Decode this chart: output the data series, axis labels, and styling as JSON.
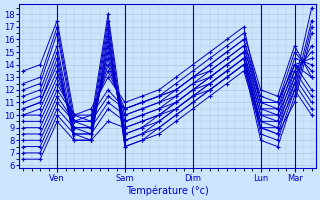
{
  "xlabel": "Température (°c)",
  "bg_color": "#cce5ff",
  "line_color": "#0000cc",
  "grid_color": "#b0c8d8",
  "ylim": [
    5.8,
    18.8
  ],
  "yticks": [
    6,
    7,
    8,
    9,
    10,
    11,
    12,
    13,
    14,
    15,
    16,
    17,
    18
  ],
  "day_labels": [
    "Ven",
    "Sam",
    "Dim",
    "Lun",
    "Mar"
  ],
  "day_tick_positions": [
    8,
    24,
    40,
    56,
    64
  ],
  "xlim": [
    -1,
    69
  ],
  "vline_positions": [
    8,
    24,
    40,
    56,
    64
  ],
  "lines": [
    [
      0,
      13.5,
      4,
      14,
      8,
      17.5,
      12,
      10,
      16,
      9.5,
      20,
      18,
      24,
      8.5,
      28,
      9,
      32,
      10,
      36,
      11,
      40,
      12,
      44,
      13,
      48,
      14,
      52,
      15,
      56,
      9,
      60,
      8.5,
      64,
      12.5,
      68,
      18.5
    ],
    [
      0,
      12.5,
      4,
      13,
      8,
      17,
      12,
      9.5,
      16,
      9,
      20,
      17.5,
      24,
      8,
      28,
      8.5,
      32,
      9.5,
      36,
      10.5,
      40,
      11.5,
      44,
      12.5,
      48,
      13.5,
      52,
      14.5,
      56,
      8.5,
      60,
      8,
      64,
      12,
      68,
      17.5
    ],
    [
      0,
      12,
      4,
      12.5,
      8,
      16.5,
      12,
      9,
      16,
      8.5,
      20,
      17,
      24,
      7.5,
      28,
      8,
      32,
      9,
      36,
      10,
      40,
      11,
      44,
      12,
      48,
      13,
      52,
      14,
      56,
      8,
      60,
      7.5,
      64,
      11.5,
      68,
      17
    ],
    [
      0,
      11.5,
      4,
      12,
      8,
      15.5,
      12,
      8.5,
      16,
      8,
      20,
      16.5,
      24,
      7.5,
      28,
      8,
      32,
      8.5,
      36,
      9.5,
      40,
      10.5,
      44,
      11.5,
      48,
      12.5,
      52,
      13.5,
      56,
      9,
      60,
      8.5,
      64,
      11,
      68,
      16.5
    ],
    [
      0,
      11,
      4,
      11.5,
      8,
      15,
      12,
      8,
      16,
      8,
      20,
      16,
      24,
      8,
      28,
      8.5,
      32,
      9,
      36,
      10,
      40,
      11,
      44,
      12,
      48,
      13,
      52,
      14,
      56,
      9.5,
      60,
      9,
      64,
      13,
      68,
      15.5
    ],
    [
      0,
      10.5,
      4,
      11,
      8,
      14.5,
      12,
      8,
      16,
      8,
      20,
      15.5,
      24,
      8.5,
      28,
      9,
      32,
      9.5,
      36,
      10.5,
      40,
      11.5,
      44,
      12.5,
      48,
      13.5,
      52,
      14.5,
      56,
      10,
      60,
      9.5,
      64,
      13.5,
      68,
      15
    ],
    [
      0,
      10.5,
      4,
      11,
      8,
      14,
      12,
      8.5,
      16,
      8.5,
      20,
      15,
      24,
      9,
      28,
      9.5,
      32,
      10,
      36,
      11,
      40,
      12,
      44,
      13,
      48,
      14,
      52,
      15,
      56,
      10.5,
      60,
      10,
      64,
      14,
      68,
      14.5
    ],
    [
      0,
      10,
      4,
      10.5,
      8,
      13.5,
      12,
      9,
      16,
      9,
      20,
      14.5,
      24,
      9.5,
      28,
      10,
      32,
      10.5,
      36,
      11.5,
      40,
      12.5,
      44,
      13.5,
      48,
      14.5,
      52,
      15.5,
      56,
      11,
      60,
      10.5,
      64,
      14.5,
      68,
      14
    ],
    [
      0,
      10,
      4,
      10,
      8,
      13,
      12,
      9.5,
      16,
      9.5,
      20,
      14,
      24,
      10,
      28,
      10.5,
      32,
      11,
      36,
      12,
      40,
      13,
      44,
      14,
      48,
      15,
      52,
      16,
      56,
      11.5,
      60,
      11,
      64,
      15,
      68,
      13.5
    ],
    [
      0,
      9.5,
      4,
      9.5,
      8,
      12.5,
      12,
      10,
      16,
      10,
      20,
      13.5,
      24,
      10.5,
      28,
      11,
      32,
      11.5,
      36,
      12.5,
      40,
      13.5,
      44,
      14.5,
      48,
      15.5,
      52,
      16.5,
      56,
      12,
      60,
      11.5,
      64,
      15.5,
      68,
      13
    ],
    [
      0,
      9,
      4,
      9,
      8,
      12,
      12,
      10,
      16,
      10.5,
      20,
      13,
      24,
      11,
      28,
      11.5,
      32,
      12,
      36,
      13,
      40,
      14,
      44,
      15,
      48,
      16,
      52,
      17,
      56,
      11,
      60,
      11,
      64,
      14,
      68,
      13
    ],
    [
      0,
      8.5,
      4,
      8.5,
      8,
      11.5,
      12,
      9.5,
      16,
      10,
      20,
      12,
      24,
      10.5,
      28,
      11,
      32,
      11.5,
      36,
      12,
      40,
      13,
      44,
      14,
      48,
      15,
      52,
      16,
      56,
      11,
      60,
      11,
      64,
      14,
      68,
      12
    ],
    [
      0,
      8,
      4,
      8,
      8,
      11,
      12,
      9.5,
      16,
      9.5,
      20,
      11.5,
      24,
      10.5,
      28,
      11,
      32,
      11.5,
      36,
      12,
      40,
      13,
      44,
      13.5,
      48,
      14.5,
      52,
      15.5,
      56,
      10.5,
      60,
      10.5,
      64,
      13.5,
      68,
      11.5
    ],
    [
      0,
      7.5,
      4,
      7.5,
      8,
      10.5,
      12,
      9,
      16,
      9,
      20,
      11,
      24,
      10,
      28,
      10.5,
      32,
      11,
      36,
      11.5,
      40,
      12.5,
      44,
      13,
      48,
      14,
      52,
      15,
      56,
      10,
      60,
      10,
      64,
      13,
      68,
      11
    ],
    [
      0,
      7,
      4,
      7,
      8,
      10,
      12,
      8.5,
      16,
      8.5,
      20,
      10.5,
      24,
      9.5,
      28,
      10,
      32,
      10.5,
      36,
      11,
      40,
      12,
      44,
      12.5,
      48,
      13.5,
      52,
      14.5,
      56,
      9.5,
      60,
      9.5,
      64,
      12.5,
      68,
      10.5
    ],
    [
      0,
      6.5,
      4,
      6.5,
      8,
      9.5,
      12,
      8,
      16,
      8,
      20,
      9.5,
      24,
      9,
      28,
      9.5,
      32,
      10,
      36,
      10.5,
      40,
      11.5,
      44,
      12,
      48,
      13,
      52,
      14,
      56,
      9,
      60,
      9,
      64,
      12,
      68,
      10
    ]
  ]
}
